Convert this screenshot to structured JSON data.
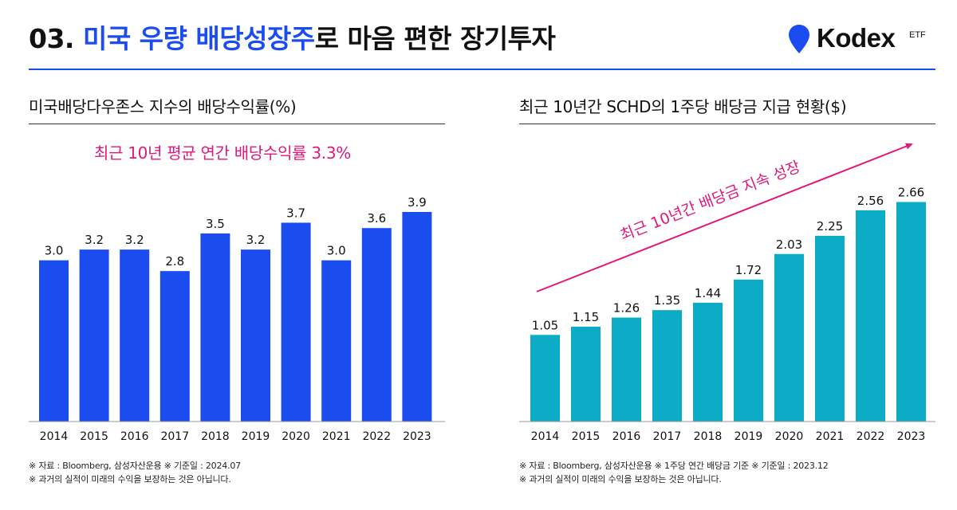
{
  "header": {
    "prefix": "03. ",
    "highlight": "미국 우량 배당성장주",
    "suffix": "로 마음 편한 장기투자"
  },
  "logo": {
    "text": "Kodex",
    "sub": "ETF"
  },
  "colors": {
    "accent": "#1a4cf0",
    "left_bar": "#1a4cf0",
    "right_bar": "#0cacc7",
    "annotation": "#e0187a"
  },
  "left_panel": {
    "subtitle": "미국배당다우존스 지수의 배당수익률(%)",
    "annotation": "최근 10년 평균 연간 배당수익률 3.3%",
    "note1": "※ 자료 :  Bloomberg, 삼성자산운용 ※ 기준일 : 2024.07",
    "note2": "※ 과거의 실적이 미래의 수익을 보장하는 것은 아닙니다."
  },
  "right_panel": {
    "subtitle": "최근 10년간 SCHD의 1주당 배당금 지급 현황($)",
    "annotation": "최근 10년간 배당금 지속 성장",
    "note1": "※ 자료 : Bloomberg, 삼성자산운용 ※ 1주당 연간 배당금 기준 ※ 기준일 : 2023.12",
    "note2": "※ 과거의 실적이 미래의 수익을 보장하는 것은 아닙니다."
  },
  "chart_data": [
    {
      "type": "bar",
      "title": "미국배당다우존스 지수의 배당수익률(%)",
      "categories": [
        "2014",
        "2015",
        "2016",
        "2017",
        "2018",
        "2019",
        "2020",
        "2021",
        "2022",
        "2023"
      ],
      "values": [
        3.0,
        3.2,
        3.2,
        2.8,
        3.5,
        3.2,
        3.7,
        3.0,
        3.6,
        3.9
      ],
      "labels": [
        "3.0",
        "3.2",
        "3.2",
        "2.8",
        "3.5",
        "3.2",
        "3.7",
        "3.0",
        "3.6",
        "3.9"
      ],
      "ylim": [
        0,
        4.3
      ],
      "grid": false,
      "color": "#1a4cf0"
    },
    {
      "type": "bar",
      "title": "최근 10년간 SCHD의 1주당 배당금 지급 현황($)",
      "categories": [
        "2014",
        "2015",
        "2016",
        "2017",
        "2018",
        "2019",
        "2020",
        "2021",
        "2022",
        "2023"
      ],
      "values": [
        1.05,
        1.15,
        1.26,
        1.35,
        1.44,
        1.72,
        2.03,
        2.25,
        2.56,
        2.66
      ],
      "labels": [
        "1.05",
        "1.15",
        "1.26",
        "1.35",
        "1.44",
        "1.72",
        "2.03",
        "2.25",
        "2.56",
        "2.66"
      ],
      "ylim": [
        0,
        2.8
      ],
      "grid": false,
      "color": "#0cacc7"
    }
  ]
}
